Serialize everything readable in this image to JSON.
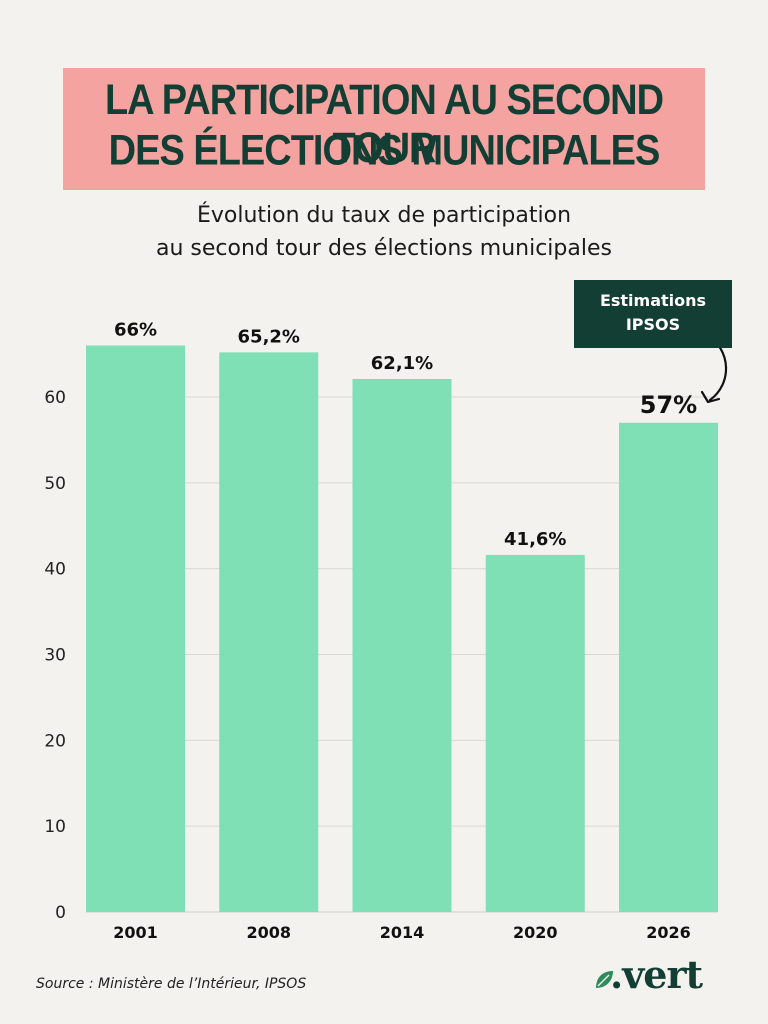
{
  "title": {
    "line1": "LA PARTICIPATION AU SECOND TOUR",
    "line2": "DES ÉLECTIONS MUNICIPALES"
  },
  "subtitle": {
    "line1": "Évolution du taux de participation",
    "line2": "au second tour des élections municipales"
  },
  "annotation": {
    "line1": "Estimations",
    "line2": "IPSOS"
  },
  "source": "Source : Ministère de l’Intérieur, IPSOS",
  "logo": ".vert",
  "colors": {
    "background": "#f3f2ee",
    "title_bg": "#f5a3a1",
    "title_text": "#123e34",
    "bar": "#7fe0b5",
    "badge": "#123e34"
  },
  "chart_data": {
    "type": "bar",
    "title": "Évolution du taux de participation au second tour des élections municipales",
    "xlabel": "",
    "ylabel": "",
    "categories": [
      "2001",
      "2008",
      "2014",
      "2020",
      "2026"
    ],
    "values": [
      66,
      65.2,
      62.1,
      41.6,
      57
    ],
    "value_labels": [
      "66%",
      "65,2%",
      "62,1%",
      "41,6%",
      "57%"
    ],
    "ylim": [
      0,
      70
    ],
    "yticks": [
      0,
      10,
      20,
      30,
      40,
      50,
      60
    ],
    "grid": true,
    "legend": "none"
  }
}
